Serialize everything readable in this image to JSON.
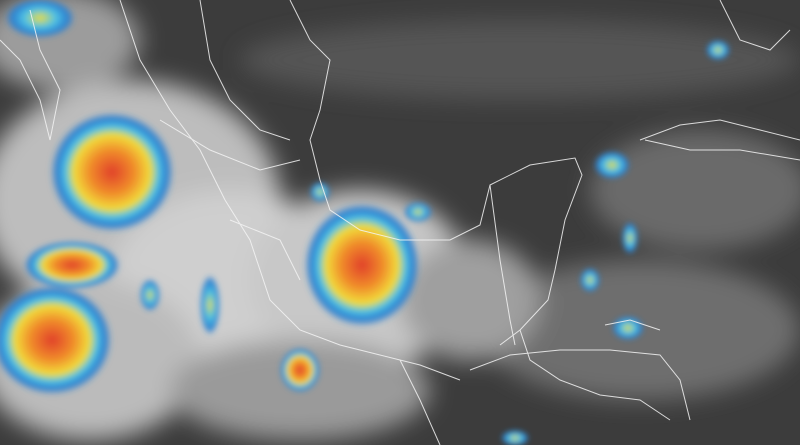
{
  "image": {
    "kind": "infrared satellite image",
    "colors": {
      "background": "#3c3c3c",
      "cloud_white": "#e8e8e8",
      "cold_blue": "#2a7fd0",
      "cyan": "#4fc3e6",
      "yellow": "#f2dc3a",
      "orange": "#f08a2a",
      "red": "#e0402a",
      "borders": "#f4f4f4"
    },
    "storm_cells": [
      "northwest-mexico",
      "gulf-of-mexico-south",
      "pacific-southwest",
      "pacific-coast-small",
      "oaxaca-coast"
    ]
  }
}
